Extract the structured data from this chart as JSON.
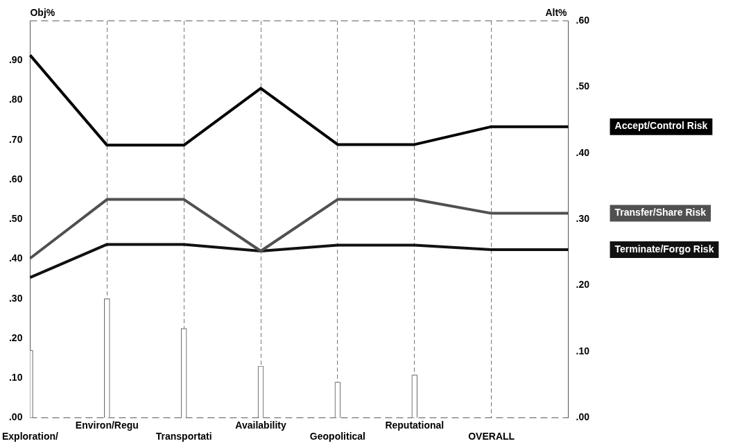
{
  "chart_data": {
    "type": "line",
    "ylabel": "Obj%",
    "y2label": "Alt%",
    "categories": [
      "Exploration/",
      "Environ/Regu",
      "Transportati",
      "Availability",
      "Geopolitical",
      "Reputational",
      "OVERALL",
      null
    ],
    "series": [
      {
        "type": "bar",
        "color": "#ffffff",
        "values": [
          0.17,
          0.3,
          0.225,
          0.13,
          0.09,
          0.108,
          null,
          null
        ]
      },
      {
        "name": "Accept/Control Risk",
        "color": "#000000",
        "axis": "y2",
        "values": [
          0.548,
          0.412,
          0.412,
          0.498,
          0.413,
          0.413,
          0.44,
          0.44
        ]
      },
      {
        "name": "Transfer/Share Risk",
        "color": "#505050",
        "axis": "y2",
        "values": [
          0.241,
          0.33,
          0.33,
          0.252,
          0.33,
          0.33,
          0.309,
          0.309
        ]
      },
      {
        "name": "Terminate/Forgo Risk",
        "color": "#111111",
        "axis": "y2",
        "values": [
          0.212,
          0.262,
          0.262,
          0.252,
          0.261,
          0.261,
          0.254,
          0.254
        ]
      }
    ],
    "ylim": [
      0,
      1
    ],
    "yticks": [
      {
        "value": 0,
        "label": ".00"
      },
      {
        "value": 0.1,
        "label": ".10"
      },
      {
        "value": 0.2,
        "label": ".20"
      },
      {
        "value": 0.3,
        "label": ".30"
      },
      {
        "value": 0.4,
        "label": ".40"
      },
      {
        "value": 0.5,
        "label": ".50"
      },
      {
        "value": 0.6,
        "label": ".60"
      },
      {
        "value": 0.7,
        "label": ".70"
      },
      {
        "value": 0.8,
        "label": ".80"
      },
      {
        "value": 0.9,
        "label": ".90"
      },
      {
        "value": 1,
        "label": null
      }
    ],
    "y2lim": [
      0,
      0.6
    ],
    "y2ticks": [
      {
        "value": 0,
        "label": ".00"
      },
      {
        "value": 0.1,
        "label": ".10"
      },
      {
        "value": 0.2,
        "label": ".20"
      },
      {
        "value": 0.3,
        "label": ".30"
      },
      {
        "value": 0.4,
        "label": ".40"
      },
      {
        "value": 0.5,
        "label": ".50"
      },
      {
        "value": 0.6,
        "label": ".60"
      }
    ],
    "grid": "x",
    "legend": false,
    "marker": "none"
  }
}
